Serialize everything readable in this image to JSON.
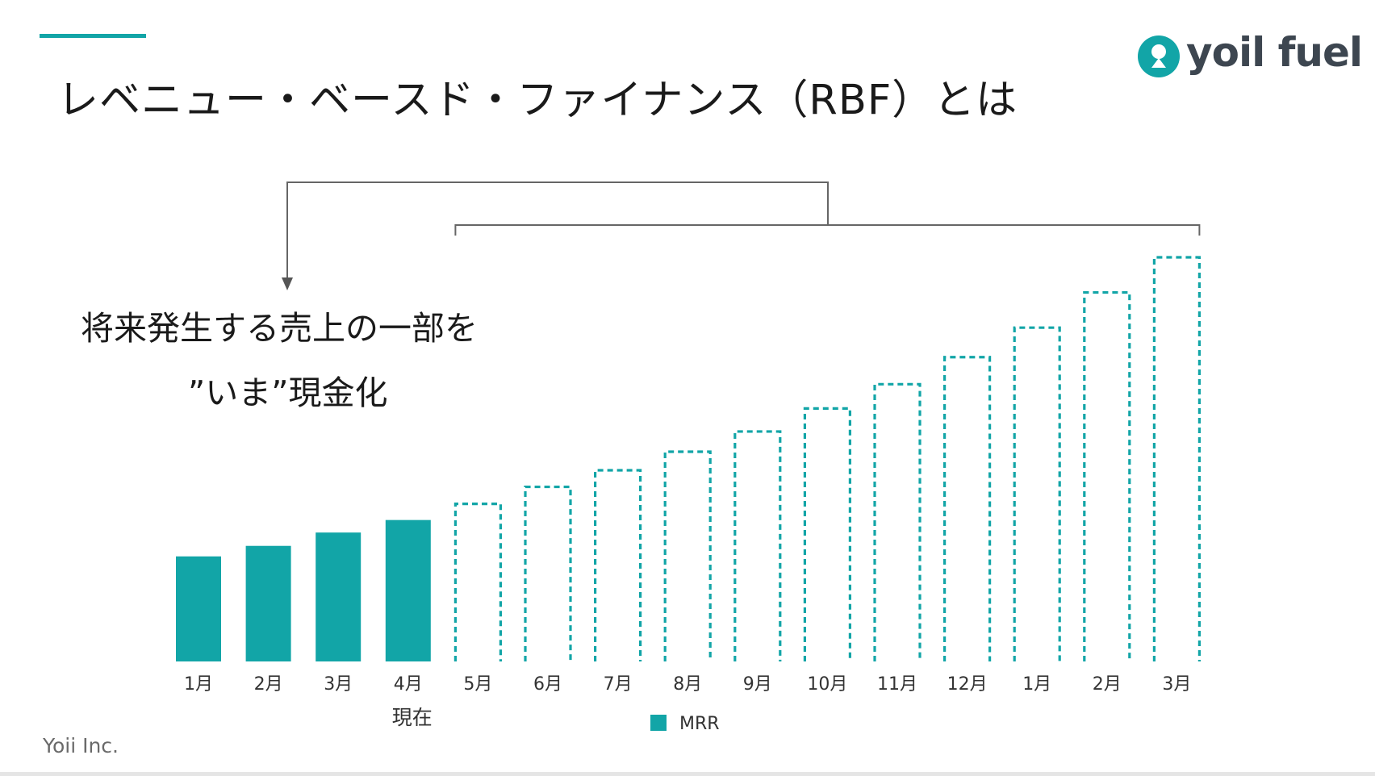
{
  "slide": {
    "title": "レベニュー・ベースド・ファイナンス（RBF）とは",
    "accent_color": "#12a5a7",
    "logo_text": "yoil fuel",
    "headline": "将来発生する売上の一部を",
    "subline": "”いま”現金化",
    "footer": "Yoii Inc."
  },
  "chart_data": {
    "type": "bar",
    "categories": [
      "1月",
      "2月",
      "3月",
      "4月",
      "5月",
      "6月",
      "7月",
      "8月",
      "9月",
      "10月",
      "11月",
      "12月",
      "1月",
      "2月",
      "3月"
    ],
    "series": [
      {
        "name": "MRR",
        "values": [
          26,
          28.6,
          31.9,
          35,
          39,
          43.2,
          47.3,
          51.9,
          56.9,
          62.6,
          68.6,
          75.3,
          82.6,
          91.3,
          100
        ],
        "color": "#12a5a7",
        "actual_count": 4
      }
    ],
    "marker": {
      "category_index": 3,
      "label": "現在"
    },
    "legend": {
      "position": "bottom",
      "label": "MRR"
    },
    "ylim": [
      0,
      100
    ],
    "grid": false
  }
}
